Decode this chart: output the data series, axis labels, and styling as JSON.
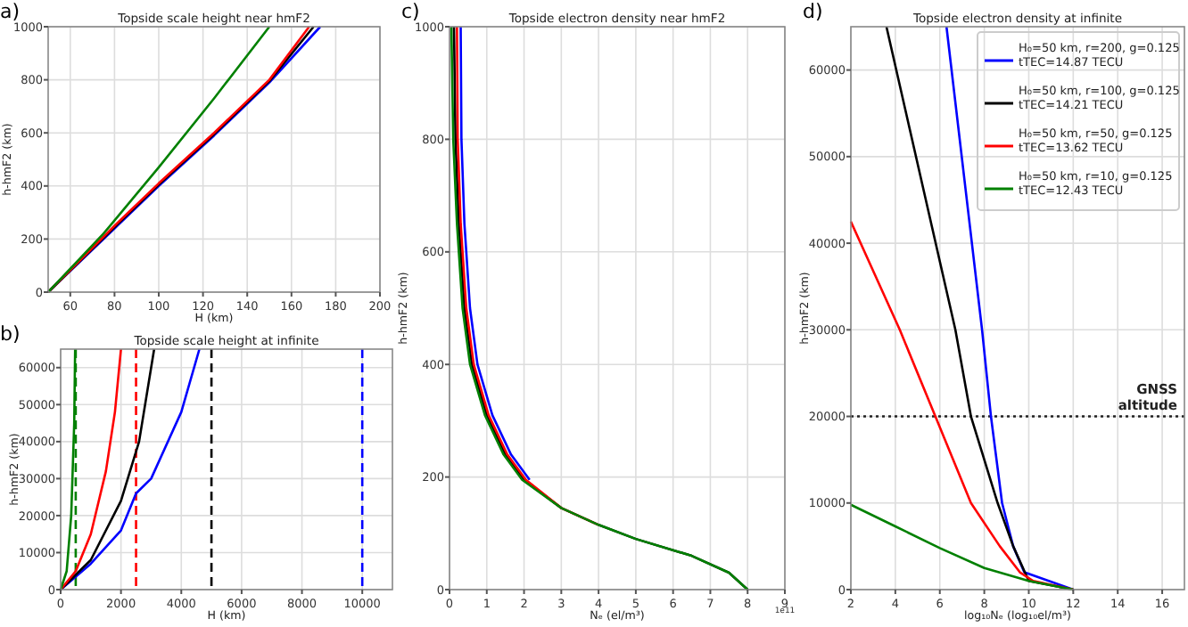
{
  "chart_data": [
    {
      "type": "line",
      "title": "Topside scale height near hmF2",
      "xlabel": "H (km)",
      "ylabel": "h-hmF2 (km)",
      "annotations": [
        "a)"
      ],
      "xlim": [
        50,
        200
      ],
      "ylim": [
        0,
        1000
      ],
      "xticks": [
        60,
        80,
        100,
        120,
        140,
        160,
        180,
        200
      ],
      "yticks": [
        0,
        200,
        400,
        600,
        800,
        1000
      ],
      "grid": true,
      "series": [
        {
          "color": "#0000ff",
          "x": [
            50,
            80,
            100,
            125,
            150,
            173
          ],
          "values": [
            0,
            240,
            400,
            590,
            790,
            1000
          ]
        },
        {
          "color": "#000000",
          "x": [
            50,
            80,
            100,
            125,
            150,
            170
          ],
          "values": [
            0,
            245,
            405,
            595,
            795,
            1000
          ]
        },
        {
          "color": "#ff0000",
          "x": [
            50,
            80,
            100,
            125,
            150,
            168
          ],
          "values": [
            0,
            250,
            410,
            600,
            800,
            1000
          ]
        },
        {
          "color": "#008000",
          "x": [
            50,
            75,
            100,
            125,
            150
          ],
          "values": [
            0,
            220,
            470,
            730,
            1000
          ]
        }
      ]
    },
    {
      "type": "line",
      "title": "Topside scale height at infinite",
      "xlabel": "H (km)",
      "ylabel": "h-hmF2 (km)",
      "annotations": [
        "b)"
      ],
      "xlim": [
        0,
        11000
      ],
      "ylim": [
        0,
        65000
      ],
      "xticks": [
        0,
        2000,
        4000,
        6000,
        8000,
        10000
      ],
      "yticks": [
        0,
        10000,
        20000,
        30000,
        40000,
        50000,
        60000
      ],
      "grid": true,
      "series": [
        {
          "color": "#0000ff",
          "x": [
            0,
            1000,
            2000,
            2500,
            3000,
            4000,
            4600
          ],
          "values": [
            0,
            7000,
            16000,
            26000,
            30000,
            48000,
            65000
          ]
        },
        {
          "color": "#000000",
          "x": [
            0,
            1000,
            2000,
            2600,
            3100
          ],
          "values": [
            0,
            8000,
            24000,
            40000,
            65000
          ]
        },
        {
          "color": "#ff0000",
          "x": [
            0,
            500,
            1000,
            1500,
            1800,
            2000
          ],
          "values": [
            0,
            5000,
            15000,
            32000,
            48000,
            65000
          ]
        },
        {
          "color": "#008000",
          "x": [
            0,
            200,
            350,
            450,
            480
          ],
          "values": [
            0,
            5000,
            20000,
            45000,
            65000
          ]
        }
      ],
      "ref_lines": [
        {
          "axis": "x",
          "value": 10000,
          "color": "#0000ff",
          "line_style": "dashed"
        },
        {
          "axis": "x",
          "value": 5000,
          "color": "#000000",
          "line_style": "dashed"
        },
        {
          "axis": "x",
          "value": 2500,
          "color": "#ff0000",
          "line_style": "dashed"
        },
        {
          "axis": "x",
          "value": 500,
          "color": "#008000",
          "line_style": "dashed"
        }
      ]
    },
    {
      "type": "line",
      "title": "Topside electron density near hmF2",
      "xlabel": "Nₑ (el/m³)",
      "ylabel": "h-hmF2 (km)",
      "annotations": [
        "c)",
        "1e11"
      ],
      "xlim": [
        0,
        9
      ],
      "ylim": [
        0,
        1000
      ],
      "xticks": [
        0,
        1,
        2,
        3,
        4,
        5,
        6,
        7,
        8,
        9
      ],
      "yticks": [
        0,
        200,
        400,
        600,
        800,
        1000
      ],
      "grid": true,
      "series": [
        {
          "color": "#0000ff",
          "x": [
            2.15,
            1.65,
            1.15,
            0.75,
            0.55,
            0.4,
            0.32,
            0.3
          ],
          "values": [
            195,
            240,
            310,
            400,
            500,
            650,
            800,
            1000
          ]
        },
        {
          "color": "#000000",
          "x": [
            8,
            7.5,
            6.5,
            5,
            4,
            3,
            2,
            1.5,
            1,
            0.6,
            0.4,
            0.25,
            0.16,
            0.12
          ],
          "values": [
            0,
            30,
            60,
            90,
            115,
            145,
            195,
            240,
            310,
            400,
            500,
            650,
            800,
            1000
          ]
        },
        {
          "color": "#ff0000",
          "x": [
            4,
            3,
            2.05,
            1.55,
            1.05,
            0.65,
            0.45,
            0.3,
            0.22,
            0.2
          ],
          "values": [
            115,
            145,
            195,
            240,
            310,
            400,
            500,
            650,
            800,
            1000
          ]
        },
        {
          "color": "#008000",
          "x": [
            8,
            7.5,
            6.5,
            5,
            4,
            3,
            1.95,
            1.45,
            0.95,
            0.55,
            0.35,
            0.2,
            0.1,
            0.05
          ],
          "values": [
            0,
            30,
            60,
            90,
            115,
            145,
            195,
            240,
            310,
            400,
            500,
            650,
            800,
            1000
          ]
        }
      ]
    },
    {
      "type": "line",
      "title": "Topside electron density at infinite",
      "xlabel": "log₁₀Nₑ (log₁₀el/m³)",
      "ylabel": "h-hmF2 (km)",
      "annotations": [
        "d)"
      ],
      "xlim": [
        2,
        17
      ],
      "ylim": [
        0,
        65000
      ],
      "xticks": [
        2,
        4,
        6,
        8,
        10,
        12,
        14,
        16
      ],
      "yticks": [
        0,
        10000,
        20000,
        30000,
        40000,
        50000,
        60000
      ],
      "grid": true,
      "legend": "top right",
      "series": [
        {
          "name": "H₀=50 km, r=200, g=0.125\ntTEC=14.87 TECU",
          "color": "#0000ff",
          "x": [
            12,
            9.8,
            9.3,
            8.8,
            8.3,
            7.9,
            6.3
          ],
          "values": [
            0,
            2000,
            5000,
            10000,
            20000,
            30000,
            65000
          ]
        },
        {
          "name": "H₀=50 km, r=100, g=0.125\ntTEC=14.21 TECU",
          "color": "#000000",
          "x": [
            12,
            10,
            9.3,
            8.6,
            7.4,
            6.7,
            3.6
          ],
          "values": [
            0,
            1000,
            5000,
            10000,
            20000,
            30000,
            65000
          ]
        },
        {
          "name": "H₀=50 km, r=50, g=0.125\ntTEC=13.62 TECU",
          "color": "#ff0000",
          "x": [
            12,
            10.2,
            9.6,
            8.7,
            7.4,
            5.8,
            4.2,
            2
          ],
          "values": [
            0,
            1000,
            2000,
            5000,
            10000,
            20000,
            30000,
            42500
          ]
        },
        {
          "name": "H₀=50 km, r=10, g=0.125\ntTEC=12.43 TECU",
          "color": "#008000",
          "x": [
            12,
            10,
            8,
            6,
            4,
            2
          ],
          "values": [
            0,
            1000,
            2500,
            4800,
            7300,
            9800
          ]
        }
      ],
      "ref_lines": [
        {
          "axis": "y",
          "value": 20000,
          "label": "GNSS altitude",
          "color": "#222222",
          "line_style": "dotted"
        }
      ]
    }
  ]
}
